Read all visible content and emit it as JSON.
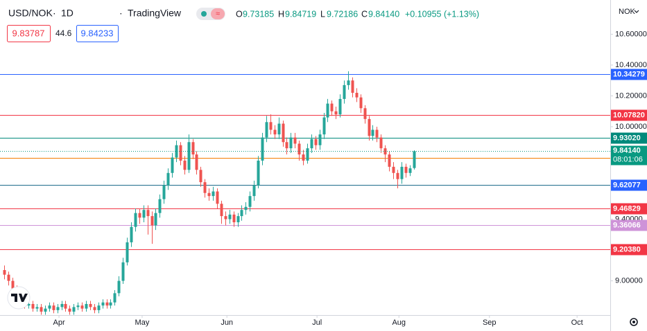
{
  "header": {
    "symbol": "USD/NOK",
    "interval": "1D",
    "brand": "TradingView",
    "open_letter": "O",
    "open_value": "9.73185",
    "high_letter": "H",
    "high_value": "9.84719",
    "low_letter": "L",
    "low_value": "9.72186",
    "close_letter": "C",
    "close_value": "9.84140",
    "change": "+0.10955 (+1.13%)",
    "bid": "9.83787",
    "spread": "44.6",
    "ask": "9.84233",
    "currency": "NOK"
  },
  "chart_data": {
    "type": "candlestick",
    "up_color": "#26a69a",
    "down_color": "#ef5350",
    "xlim": [
      -1,
      148
    ],
    "ylim": [
      8.778,
      10.822
    ],
    "xticks": [
      {
        "value": 13.4,
        "label": "Apr"
      },
      {
        "value": 33.7,
        "label": "May"
      },
      {
        "value": 54.4,
        "label": "Jun"
      },
      {
        "value": 76.4,
        "label": "Jul"
      },
      {
        "value": 96.4,
        "label": "Aug"
      },
      {
        "value": 118.5,
        "label": "Sep"
      },
      {
        "value": 139.9,
        "label": "Oct"
      }
    ],
    "yticks": [
      {
        "value": 10.6,
        "label": "10.60000"
      },
      {
        "value": 10.4,
        "label": "10.40000"
      },
      {
        "value": 10.2,
        "label": "10.20000"
      },
      {
        "value": 10.0,
        "label": "10.00000"
      },
      {
        "value": 9.4,
        "label": "9.40000"
      },
      {
        "value": 9.0,
        "label": "9.00000"
      }
    ],
    "levels": [
      {
        "value": 10.34279,
        "label": "10.34279",
        "color": "#2962ff",
        "tag_color": "#2962ff"
      },
      {
        "value": 10.0782,
        "label": "10.07820",
        "color": "#f23645",
        "tag_color": "#f23645"
      },
      {
        "value": 9.9302,
        "label": "9.93020",
        "color": "#00897b",
        "tag_color": "#00897b"
      },
      {
        "value": 9.79567,
        "label": "9.79567",
        "color": "#f57c00",
        "tag_color": "#f57c00"
      },
      {
        "value": 9.62077,
        "label": "9.62077",
        "color": "#1e6b8a",
        "tag_color": "#2962ff"
      },
      {
        "value": 9.46829,
        "label": "9.46829",
        "color": "#f23645",
        "tag_color": "#f23645"
      },
      {
        "value": 9.36066,
        "label": "9.36066",
        "color": "#ce93d8",
        "tag_color": "#ce93d8"
      },
      {
        "value": 9.2038,
        "label": "9.20380",
        "color": "#f23645",
        "tag_color": "#f23645"
      }
    ],
    "last_price_label": "9.84140",
    "last_price_color": "#089981",
    "countdown": "08:01:06",
    "open": [
      9.07,
      9.04,
      9.0,
      8.95,
      8.9,
      8.86,
      8.84,
      8.85,
      8.82,
      8.83,
      8.8,
      8.82,
      8.84,
      8.81,
      8.83,
      8.85,
      8.82,
      8.8,
      8.83,
      8.84,
      8.82,
      8.85,
      8.83,
      8.81,
      8.84,
      8.86,
      8.84,
      8.86,
      8.92,
      9.0,
      9.12,
      9.25,
      9.35,
      9.44,
      9.41,
      9.46,
      9.42,
      9.36,
      9.44,
      9.53,
      9.62,
      9.7,
      9.8,
      9.88,
      9.78,
      9.72,
      9.9,
      9.82,
      9.72,
      9.64,
      9.57,
      9.55,
      9.58,
      9.5,
      9.42,
      9.4,
      9.43,
      9.38,
      9.42,
      9.46,
      9.48,
      9.55,
      9.62,
      9.78,
      9.93,
      10.03,
      9.98,
      9.95,
      10.02,
      9.9,
      9.86,
      9.93,
      9.89,
      9.82,
      9.78,
      9.86,
      9.92,
      9.88,
      9.95,
      10.06,
      10.15,
      10.1,
      10.08,
      10.18,
      10.27,
      10.3,
      10.22,
      10.19,
      10.12,
      10.05,
      9.94,
      9.98,
      9.93,
      9.86,
      9.82,
      9.74,
      9.7,
      9.66,
      9.74,
      9.7,
      9.73185
    ],
    "high": [
      9.1,
      9.06,
      9.02,
      8.97,
      8.92,
      8.88,
      8.87,
      8.87,
      8.85,
      8.85,
      8.84,
      8.86,
      8.86,
      8.85,
      8.87,
      8.87,
      8.84,
      8.85,
      8.86,
      8.86,
      8.87,
      8.87,
      8.85,
      8.86,
      8.88,
      8.88,
      8.88,
      8.94,
      9.03,
      9.15,
      9.28,
      9.38,
      9.47,
      9.47,
      9.49,
      9.49,
      9.45,
      9.47,
      9.56,
      9.65,
      9.73,
      9.83,
      9.91,
      9.9,
      9.81,
      9.95,
      9.92,
      9.84,
      9.74,
      9.66,
      9.6,
      9.61,
      9.6,
      9.52,
      9.45,
      9.46,
      9.45,
      9.44,
      9.49,
      9.51,
      9.58,
      9.65,
      9.81,
      9.96,
      10.07,
      10.08,
      10.01,
      10.06,
      10.04,
      9.93,
      9.96,
      9.96,
      9.91,
      9.85,
      9.89,
      9.95,
      9.94,
      9.98,
      10.09,
      10.18,
      10.17,
      10.13,
      10.21,
      10.3,
      10.36,
      10.32,
      10.25,
      10.21,
      10.14,
      10.07,
      10.01,
      10.0,
      9.95,
      9.88,
      9.84,
      9.77,
      9.72,
      9.77,
      9.76,
      9.75,
      9.84719
    ],
    "low": [
      9.01,
      8.97,
      8.92,
      8.87,
      8.84,
      8.82,
      8.82,
      8.8,
      8.8,
      8.78,
      8.78,
      8.8,
      8.79,
      8.79,
      8.81,
      8.8,
      8.78,
      8.78,
      8.81,
      8.8,
      8.8,
      8.81,
      8.79,
      8.79,
      8.82,
      8.82,
      8.82,
      8.84,
      8.9,
      8.98,
      9.1,
      9.22,
      9.32,
      9.37,
      9.38,
      9.3,
      9.24,
      9.33,
      9.41,
      9.5,
      9.59,
      9.67,
      9.77,
      9.75,
      9.69,
      9.7,
      9.79,
      9.69,
      9.61,
      9.54,
      9.52,
      9.52,
      9.47,
      9.37,
      9.36,
      9.37,
      9.35,
      9.35,
      9.39,
      9.43,
      9.45,
      9.52,
      9.6,
      9.75,
      9.9,
      9.95,
      9.92,
      9.92,
      9.87,
      9.82,
      9.83,
      9.86,
      9.78,
      9.75,
      9.76,
      9.83,
      9.85,
      9.85,
      9.92,
      10.03,
      10.07,
      10.05,
      10.06,
      10.15,
      10.24,
      10.19,
      10.16,
      10.09,
      10.02,
      9.91,
      9.91,
      9.9,
      9.83,
      9.77,
      9.71,
      9.66,
      9.6,
      9.63,
      9.67,
      9.68,
      9.72186
    ],
    "close": [
      9.04,
      9.0,
      8.95,
      8.9,
      8.86,
      8.84,
      8.85,
      8.82,
      8.83,
      8.8,
      8.82,
      8.84,
      8.81,
      8.83,
      8.85,
      8.82,
      8.8,
      8.83,
      8.84,
      8.82,
      8.85,
      8.83,
      8.81,
      8.84,
      8.86,
      8.84,
      8.86,
      8.92,
      9.0,
      9.12,
      9.25,
      9.35,
      9.44,
      9.41,
      9.46,
      9.42,
      9.36,
      9.44,
      9.53,
      9.62,
      9.7,
      9.8,
      9.88,
      9.78,
      9.72,
      9.9,
      9.82,
      9.72,
      9.64,
      9.57,
      9.55,
      9.58,
      9.5,
      9.42,
      9.4,
      9.43,
      9.38,
      9.42,
      9.46,
      9.48,
      9.55,
      9.62,
      9.78,
      9.93,
      10.03,
      9.98,
      9.95,
      10.02,
      9.9,
      9.86,
      9.93,
      9.89,
      9.82,
      9.78,
      9.86,
      9.92,
      9.88,
      9.95,
      10.06,
      10.15,
      10.1,
      10.08,
      10.18,
      10.27,
      10.3,
      10.22,
      10.19,
      10.12,
      10.05,
      9.94,
      9.98,
      9.93,
      9.86,
      9.82,
      9.74,
      9.7,
      9.66,
      9.74,
      9.7,
      9.73,
      9.8414
    ]
  }
}
